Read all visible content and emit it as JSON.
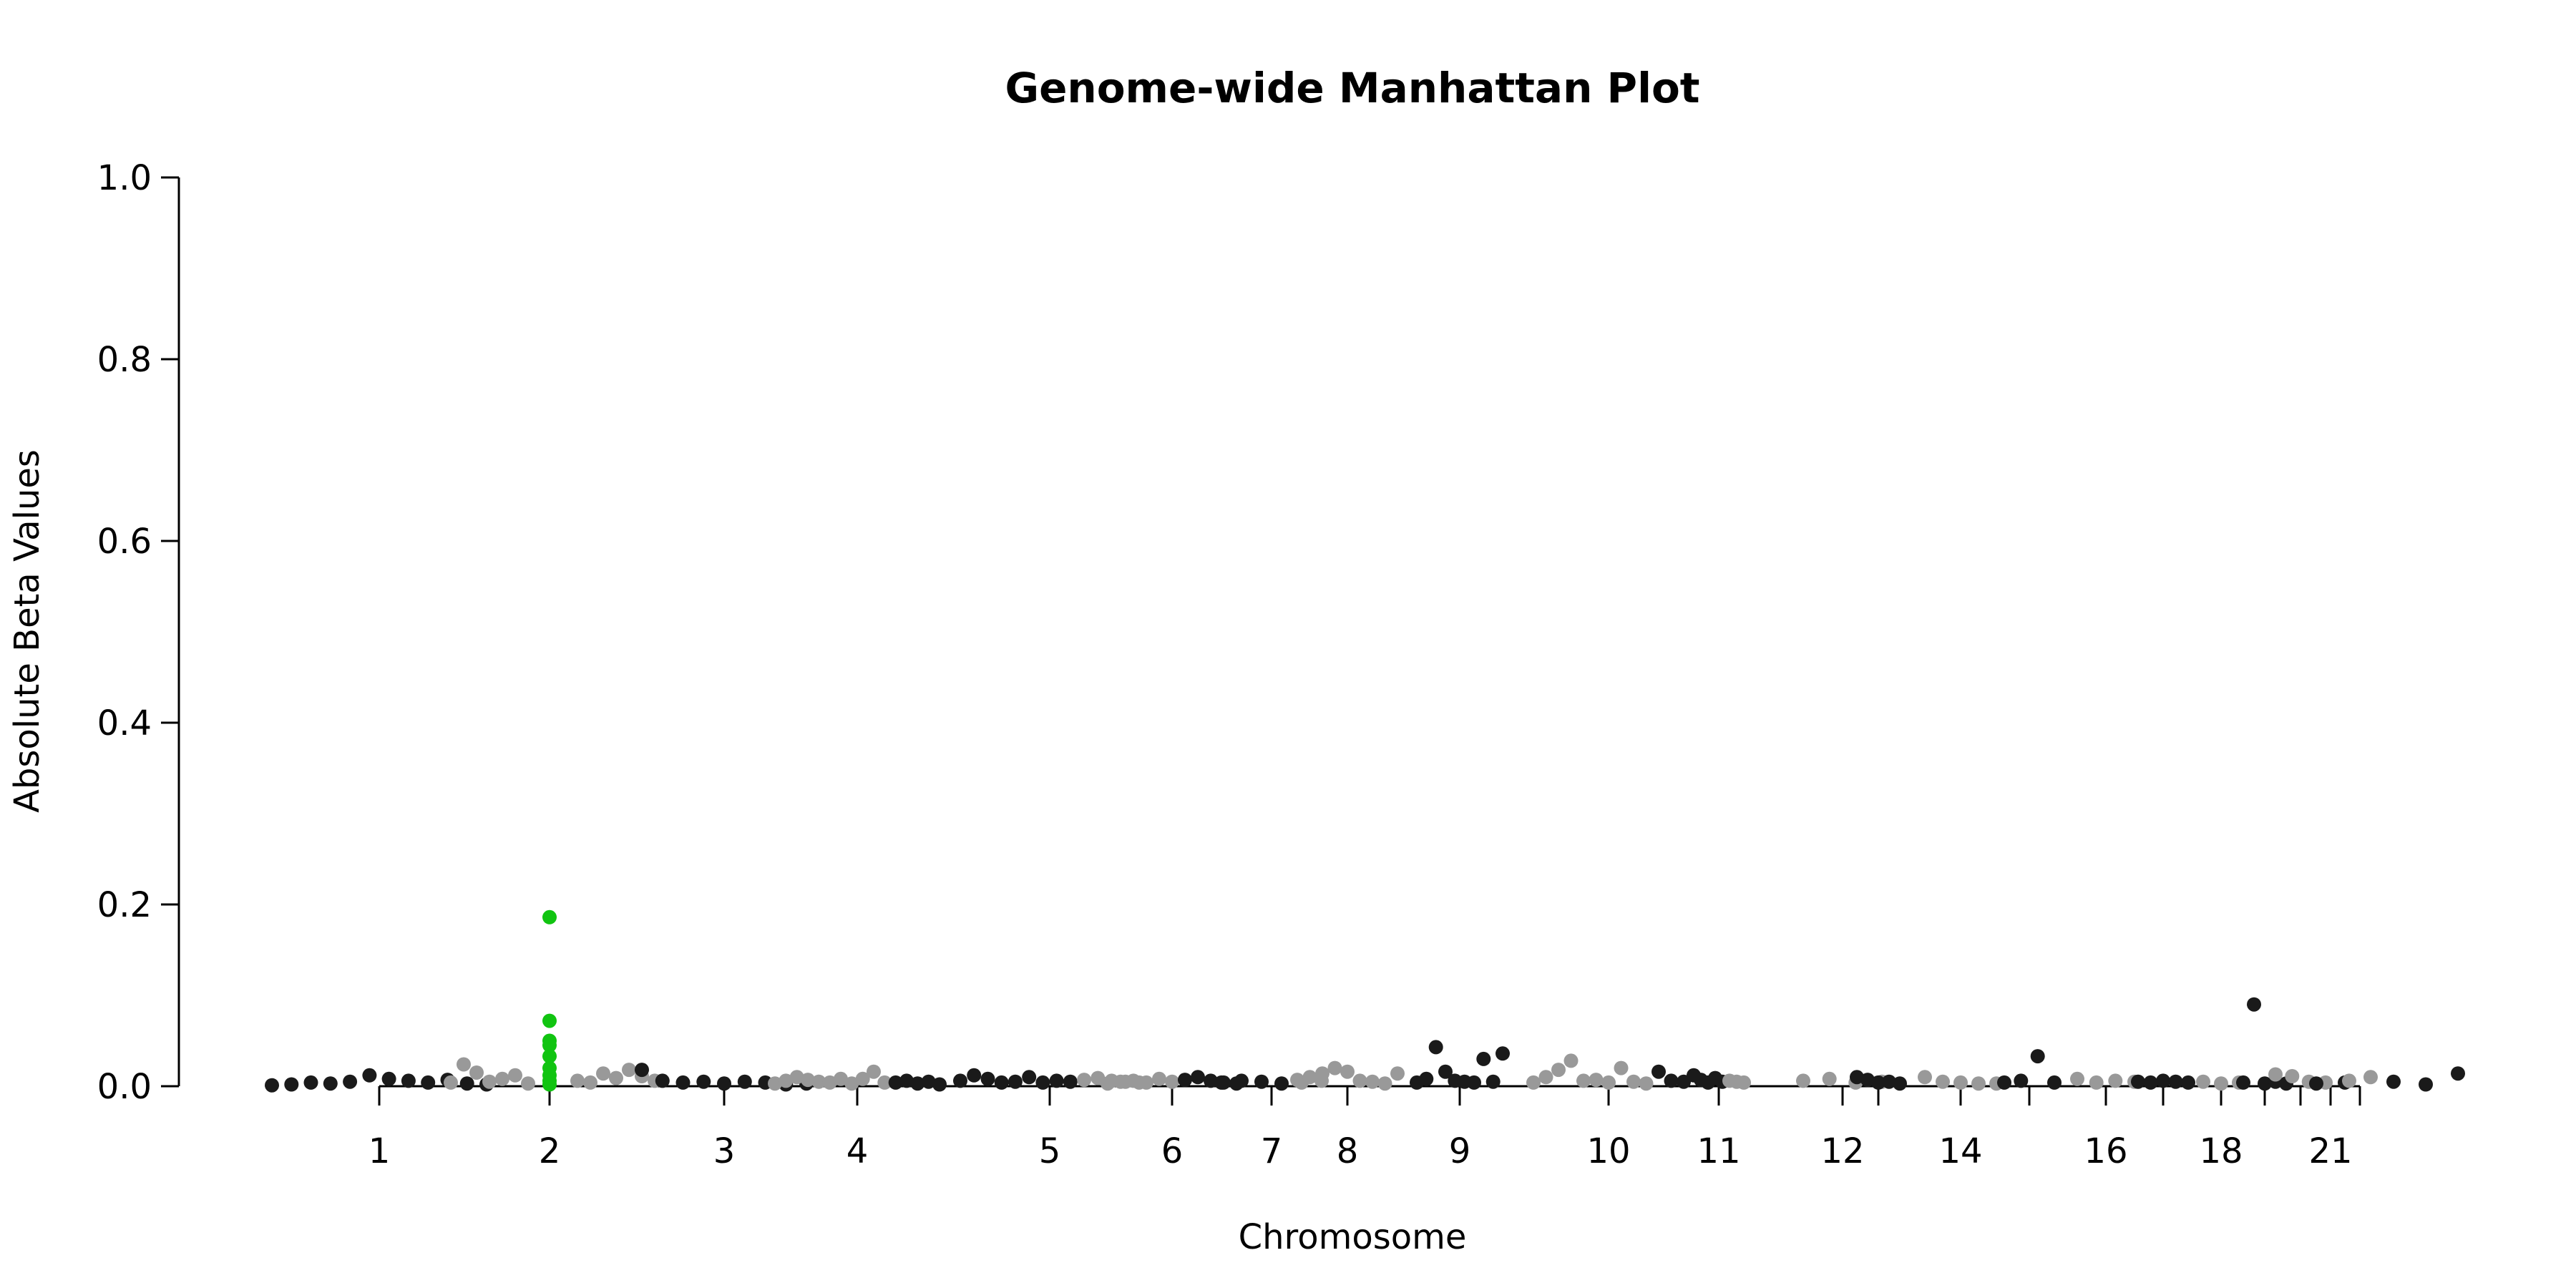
{
  "chart_data": {
    "type": "scatter",
    "title": "Genome-wide Manhattan Plot",
    "xlabel": "Chromosome",
    "ylabel": "Absolute Beta Values",
    "ylim": [
      0,
      1.0
    ],
    "y_ticks": [
      "0.0",
      "0.2",
      "0.4",
      "0.6",
      "0.8",
      "1.0"
    ],
    "x_ticks": [
      "1",
      "2",
      "3",
      "4",
      "5",
      "6",
      "7",
      "8",
      "9",
      "10",
      "11",
      "12",
      "14",
      "16",
      "18",
      "21"
    ],
    "chromosome_tick_marks": [
      "1",
      "2",
      "3",
      "4",
      "5",
      "6",
      "7",
      "8",
      "9",
      "10",
      "11",
      "12",
      "13",
      "14",
      "15",
      "16",
      "17",
      "18",
      "19",
      "20",
      "21",
      "22"
    ],
    "grid": false,
    "colors": {
      "dark": "#1a1a1a",
      "light": "#999999",
      "highlight": "#11c411"
    },
    "points": [
      {
        "chr": "1",
        "y": 0.001,
        "c": "dark"
      },
      {
        "chr": "1",
        "y": 0.002,
        "c": "dark"
      },
      {
        "chr": "1",
        "y": 0.004,
        "c": "dark"
      },
      {
        "chr": "1",
        "y": 0.003,
        "c": "dark"
      },
      {
        "chr": "1",
        "y": 0.005,
        "c": "dark"
      },
      {
        "chr": "1",
        "y": 0.012,
        "c": "dark"
      },
      {
        "chr": "1",
        "y": 0.008,
        "c": "dark"
      },
      {
        "chr": "1",
        "y": 0.006,
        "c": "dark"
      },
      {
        "chr": "1",
        "y": 0.004,
        "c": "dark"
      },
      {
        "chr": "1",
        "y": 0.007,
        "c": "dark"
      },
      {
        "chr": "1",
        "y": 0.003,
        "c": "dark"
      },
      {
        "chr": "1",
        "y": 0.002,
        "c": "dark"
      },
      {
        "chr": "2",
        "y": 0.003,
        "c": "light"
      },
      {
        "chr": "2",
        "y": 0.006,
        "c": "light"
      },
      {
        "chr": "2",
        "y": 0.012,
        "c": "light"
      },
      {
        "chr": "2",
        "y": 0.004,
        "c": "light"
      },
      {
        "chr": "2",
        "y": 0.008,
        "c": "light"
      },
      {
        "chr": "2",
        "y": 0.014,
        "c": "light"
      },
      {
        "chr": "2",
        "y": 0.005,
        "c": "light"
      },
      {
        "chr": "2",
        "y": 0.009,
        "c": "light"
      },
      {
        "chr": "2",
        "y": 0.015,
        "c": "light"
      },
      {
        "chr": "2",
        "y": 0.018,
        "c": "light"
      },
      {
        "chr": "2",
        "y": 0.024,
        "c": "light"
      },
      {
        "chr": "2",
        "y": 0.011,
        "c": "light"
      },
      {
        "chr": "2",
        "y": 0.004,
        "c": "light"
      },
      {
        "chr": "2",
        "y": 0.006,
        "c": "light"
      },
      {
        "chr": "2",
        "y": 0.186,
        "c": "highlight"
      },
      {
        "chr": "2",
        "y": 0.072,
        "c": "highlight"
      },
      {
        "chr": "2",
        "y": 0.05,
        "c": "highlight"
      },
      {
        "chr": "2",
        "y": 0.045,
        "c": "highlight"
      },
      {
        "chr": "2",
        "y": 0.033,
        "c": "highlight"
      },
      {
        "chr": "2",
        "y": 0.02,
        "c": "highlight"
      },
      {
        "chr": "2",
        "y": 0.012,
        "c": "highlight"
      },
      {
        "chr": "2",
        "y": 0.006,
        "c": "highlight"
      },
      {
        "chr": "2",
        "y": 0.002,
        "c": "highlight"
      },
      {
        "chr": "3",
        "y": 0.018,
        "c": "dark"
      },
      {
        "chr": "3",
        "y": 0.006,
        "c": "dark"
      },
      {
        "chr": "3",
        "y": 0.004,
        "c": "dark"
      },
      {
        "chr": "3",
        "y": 0.005,
        "c": "dark"
      },
      {
        "chr": "3",
        "y": 0.003,
        "c": "dark"
      },
      {
        "chr": "3",
        "y": 0.005,
        "c": "dark"
      },
      {
        "chr": "3",
        "y": 0.004,
        "c": "dark"
      },
      {
        "chr": "3",
        "y": 0.002,
        "c": "dark"
      },
      {
        "chr": "3",
        "y": 0.003,
        "c": "dark"
      },
      {
        "chr": "4",
        "y": 0.003,
        "c": "light"
      },
      {
        "chr": "4",
        "y": 0.006,
        "c": "light"
      },
      {
        "chr": "4",
        "y": 0.01,
        "c": "light"
      },
      {
        "chr": "4",
        "y": 0.007,
        "c": "light"
      },
      {
        "chr": "4",
        "y": 0.005,
        "c": "light"
      },
      {
        "chr": "4",
        "y": 0.004,
        "c": "light"
      },
      {
        "chr": "4",
        "y": 0.008,
        "c": "light"
      },
      {
        "chr": "4",
        "y": 0.003,
        "c": "light"
      },
      {
        "chr": "4",
        "y": 0.008,
        "c": "light"
      },
      {
        "chr": "4",
        "y": 0.016,
        "c": "light"
      },
      {
        "chr": "4",
        "y": 0.004,
        "c": "light"
      },
      {
        "chr": "4",
        "y": 0.004,
        "c": "dark"
      },
      {
        "chr": "4",
        "y": 0.006,
        "c": "dark"
      },
      {
        "chr": "4",
        "y": 0.003,
        "c": "dark"
      },
      {
        "chr": "4",
        "y": 0.005,
        "c": "dark"
      },
      {
        "chr": "4",
        "y": 0.002,
        "c": "dark"
      },
      {
        "chr": "5",
        "y": 0.006,
        "c": "dark"
      },
      {
        "chr": "5",
        "y": 0.012,
        "c": "dark"
      },
      {
        "chr": "5",
        "y": 0.008,
        "c": "dark"
      },
      {
        "chr": "5",
        "y": 0.004,
        "c": "dark"
      },
      {
        "chr": "5",
        "y": 0.005,
        "c": "dark"
      },
      {
        "chr": "5",
        "y": 0.01,
        "c": "dark"
      },
      {
        "chr": "5",
        "y": 0.004,
        "c": "dark"
      },
      {
        "chr": "5",
        "y": 0.006,
        "c": "dark"
      },
      {
        "chr": "5",
        "y": 0.005,
        "c": "dark"
      },
      {
        "chr": "5",
        "y": 0.007,
        "c": "light"
      },
      {
        "chr": "5",
        "y": 0.009,
        "c": "light"
      },
      {
        "chr": "5",
        "y": 0.006,
        "c": "light"
      },
      {
        "chr": "5",
        "y": 0.005,
        "c": "light"
      },
      {
        "chr": "5",
        "y": 0.004,
        "c": "light"
      },
      {
        "chr": "6",
        "y": 0.003,
        "c": "light"
      },
      {
        "chr": "6",
        "y": 0.005,
        "c": "light"
      },
      {
        "chr": "6",
        "y": 0.006,
        "c": "light"
      },
      {
        "chr": "6",
        "y": 0.004,
        "c": "light"
      },
      {
        "chr": "6",
        "y": 0.008,
        "c": "light"
      },
      {
        "chr": "6",
        "y": 0.005,
        "c": "light"
      },
      {
        "chr": "6",
        "y": 0.007,
        "c": "dark"
      },
      {
        "chr": "6",
        "y": 0.01,
        "c": "dark"
      },
      {
        "chr": "6",
        "y": 0.006,
        "c": "dark"
      },
      {
        "chr": "6",
        "y": 0.004,
        "c": "dark"
      },
      {
        "chr": "6",
        "y": 0.003,
        "c": "dark"
      },
      {
        "chr": "7",
        "y": 0.004,
        "c": "dark"
      },
      {
        "chr": "7",
        "y": 0.006,
        "c": "dark"
      },
      {
        "chr": "7",
        "y": 0.005,
        "c": "dark"
      },
      {
        "chr": "7",
        "y": 0.003,
        "c": "dark"
      },
      {
        "chr": "7",
        "y": 0.004,
        "c": "light"
      },
      {
        "chr": "7",
        "y": 0.006,
        "c": "light"
      },
      {
        "chr": "8",
        "y": 0.007,
        "c": "light"
      },
      {
        "chr": "8",
        "y": 0.01,
        "c": "light"
      },
      {
        "chr": "8",
        "y": 0.014,
        "c": "light"
      },
      {
        "chr": "8",
        "y": 0.02,
        "c": "light"
      },
      {
        "chr": "8",
        "y": 0.016,
        "c": "light"
      },
      {
        "chr": "8",
        "y": 0.006,
        "c": "light"
      },
      {
        "chr": "8",
        "y": 0.005,
        "c": "light"
      },
      {
        "chr": "8",
        "y": 0.003,
        "c": "light"
      },
      {
        "chr": "8",
        "y": 0.014,
        "c": "light"
      },
      {
        "chr": "9",
        "y": 0.004,
        "c": "dark"
      },
      {
        "chr": "9",
        "y": 0.008,
        "c": "dark"
      },
      {
        "chr": "9",
        "y": 0.043,
        "c": "dark"
      },
      {
        "chr": "9",
        "y": 0.016,
        "c": "dark"
      },
      {
        "chr": "9",
        "y": 0.006,
        "c": "dark"
      },
      {
        "chr": "9",
        "y": 0.005,
        "c": "dark"
      },
      {
        "chr": "9",
        "y": 0.004,
        "c": "dark"
      },
      {
        "chr": "9",
        "y": 0.03,
        "c": "dark"
      },
      {
        "chr": "9",
        "y": 0.005,
        "c": "dark"
      },
      {
        "chr": "9",
        "y": 0.036,
        "c": "dark"
      },
      {
        "chr": "10",
        "y": 0.004,
        "c": "light"
      },
      {
        "chr": "10",
        "y": 0.01,
        "c": "light"
      },
      {
        "chr": "10",
        "y": 0.018,
        "c": "light"
      },
      {
        "chr": "10",
        "y": 0.028,
        "c": "light"
      },
      {
        "chr": "10",
        "y": 0.006,
        "c": "light"
      },
      {
        "chr": "10",
        "y": 0.007,
        "c": "light"
      },
      {
        "chr": "10",
        "y": 0.004,
        "c": "light"
      },
      {
        "chr": "10",
        "y": 0.02,
        "c": "light"
      },
      {
        "chr": "10",
        "y": 0.005,
        "c": "light"
      },
      {
        "chr": "10",
        "y": 0.003,
        "c": "light"
      },
      {
        "chr": "10",
        "y": 0.016,
        "c": "dark"
      },
      {
        "chr": "10",
        "y": 0.006,
        "c": "dark"
      },
      {
        "chr": "10",
        "y": 0.005,
        "c": "dark"
      },
      {
        "chr": "11",
        "y": 0.012,
        "c": "dark"
      },
      {
        "chr": "11",
        "y": 0.007,
        "c": "dark"
      },
      {
        "chr": "11",
        "y": 0.004,
        "c": "dark"
      },
      {
        "chr": "11",
        "y": 0.009,
        "c": "dark"
      },
      {
        "chr": "11",
        "y": 0.005,
        "c": "dark"
      },
      {
        "chr": "11",
        "y": 0.006,
        "c": "light"
      },
      {
        "chr": "11",
        "y": 0.005,
        "c": "light"
      },
      {
        "chr": "11",
        "y": 0.004,
        "c": "light"
      },
      {
        "chr": "12",
        "y": 0.006,
        "c": "light"
      },
      {
        "chr": "12",
        "y": 0.008,
        "c": "light"
      },
      {
        "chr": "12",
        "y": 0.004,
        "c": "light"
      },
      {
        "chr": "12",
        "y": 0.005,
        "c": "light"
      },
      {
        "chr": "13",
        "y": 0.01,
        "c": "dark"
      },
      {
        "chr": "13",
        "y": 0.007,
        "c": "dark"
      },
      {
        "chr": "13",
        "y": 0.004,
        "c": "dark"
      },
      {
        "chr": "13",
        "y": 0.005,
        "c": "dark"
      },
      {
        "chr": "13",
        "y": 0.003,
        "c": "dark"
      },
      {
        "chr": "14",
        "y": 0.01,
        "c": "light"
      },
      {
        "chr": "14",
        "y": 0.005,
        "c": "light"
      },
      {
        "chr": "14",
        "y": 0.004,
        "c": "light"
      },
      {
        "chr": "14",
        "y": 0.003,
        "c": "light"
      },
      {
        "chr": "14",
        "y": 0.003,
        "c": "light"
      },
      {
        "chr": "15",
        "y": 0.004,
        "c": "dark"
      },
      {
        "chr": "15",
        "y": 0.006,
        "c": "dark"
      },
      {
        "chr": "15",
        "y": 0.033,
        "c": "dark"
      },
      {
        "chr": "15",
        "y": 0.004,
        "c": "dark"
      },
      {
        "chr": "16",
        "y": 0.008,
        "c": "light"
      },
      {
        "chr": "16",
        "y": 0.004,
        "c": "light"
      },
      {
        "chr": "16",
        "y": 0.006,
        "c": "light"
      },
      {
        "chr": "16",
        "y": 0.005,
        "c": "light"
      },
      {
        "chr": "17",
        "y": 0.005,
        "c": "dark"
      },
      {
        "chr": "17",
        "y": 0.004,
        "c": "dark"
      },
      {
        "chr": "17",
        "y": 0.006,
        "c": "dark"
      },
      {
        "chr": "17",
        "y": 0.005,
        "c": "dark"
      },
      {
        "chr": "17",
        "y": 0.004,
        "c": "dark"
      },
      {
        "chr": "18",
        "y": 0.005,
        "c": "light"
      },
      {
        "chr": "18",
        "y": 0.003,
        "c": "light"
      },
      {
        "chr": "18",
        "y": 0.004,
        "c": "light"
      },
      {
        "chr": "19",
        "y": 0.004,
        "c": "dark"
      },
      {
        "chr": "19",
        "y": 0.09,
        "c": "dark"
      },
      {
        "chr": "19",
        "y": 0.003,
        "c": "dark"
      },
      {
        "chr": "19",
        "y": 0.005,
        "c": "dark"
      },
      {
        "chr": "19",
        "y": 0.003,
        "c": "dark"
      },
      {
        "chr": "20",
        "y": 0.013,
        "c": "light"
      },
      {
        "chr": "20",
        "y": 0.011,
        "c": "light"
      },
      {
        "chr": "20",
        "y": 0.005,
        "c": "light"
      },
      {
        "chr": "20",
        "y": 0.004,
        "c": "light"
      },
      {
        "chr": "21",
        "y": 0.003,
        "c": "dark"
      },
      {
        "chr": "21",
        "y": 0.004,
        "c": "dark"
      },
      {
        "chr": "22",
        "y": 0.006,
        "c": "light"
      },
      {
        "chr": "22",
        "y": 0.01,
        "c": "light"
      },
      {
        "chr": "X",
        "y": 0.005,
        "c": "dark"
      },
      {
        "chr": "X",
        "y": 0.002,
        "c": "dark"
      },
      {
        "chr": "X",
        "y": 0.014,
        "c": "dark"
      }
    ]
  }
}
